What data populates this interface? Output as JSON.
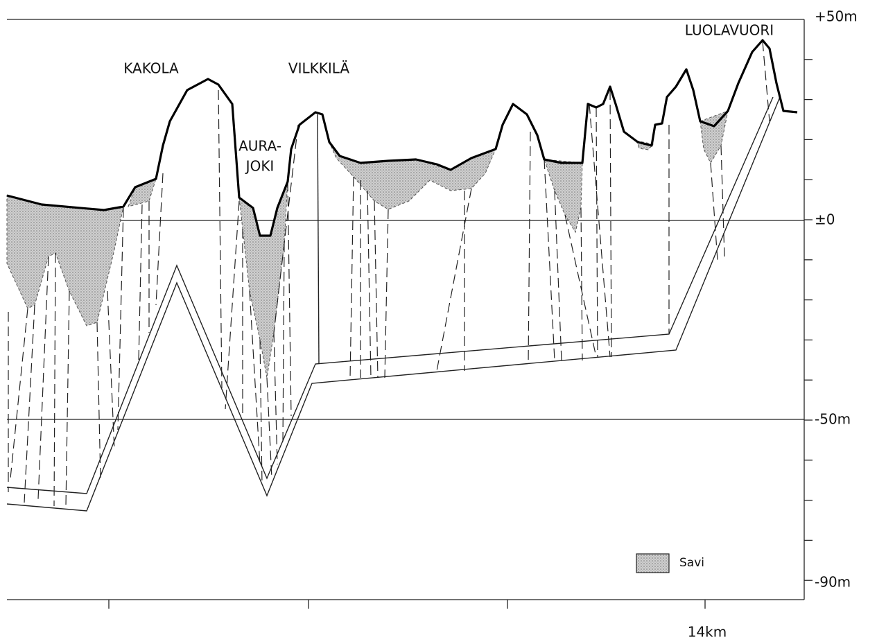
{
  "places": [
    "KAKOLA",
    "VILKKILÄ",
    "AURA-",
    "JOKI",
    "LUOLAVUORI"
  ],
  "depth_labels": [
    "+50m",
    "±0",
    "-50m",
    "-90m"
  ],
  "distance_label": "14km",
  "legend": {
    "label": "Savi"
  }
}
